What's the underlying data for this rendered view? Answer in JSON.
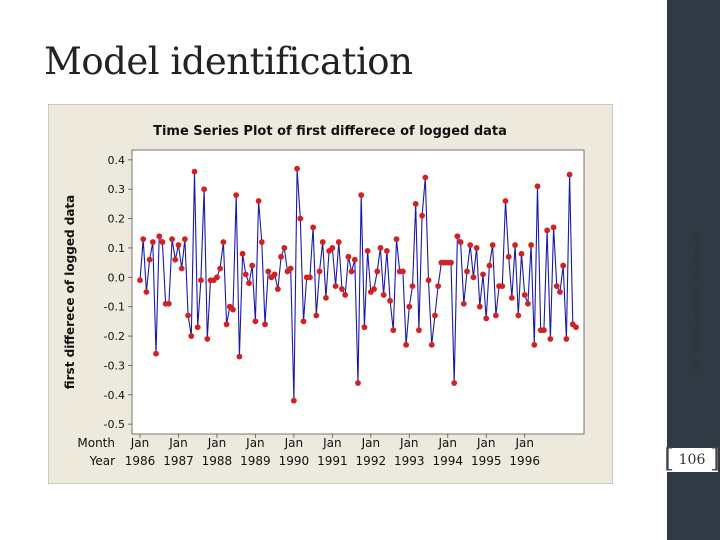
{
  "slide": {
    "title": "Model identification",
    "author": "Dr. Mohammed Alahmed",
    "page_number": "106"
  },
  "colors": {
    "panel_background": "#ede9dc",
    "plot_background": "#ffffff",
    "line": "#1a1aa8",
    "points": "#d42020",
    "side_band": "#2f3a44"
  },
  "chart_data": {
    "type": "line",
    "title": "Time Series Plot of first differece of logged data",
    "ylabel": "first differece of logged data",
    "x_row_labels": [
      "Month",
      "Year"
    ],
    "x_tick_month": [
      "Jan",
      "Jan",
      "Jan",
      "Jan",
      "Jan",
      "Jan",
      "Jan",
      "Jan",
      "Jan",
      "Jan",
      "Jan"
    ],
    "x_tick_year": [
      "1986",
      "1987",
      "1988",
      "1989",
      "1990",
      "1991",
      "1992",
      "1993",
      "1994",
      "1995",
      "1996"
    ],
    "y_ticks": [
      "0.4",
      "0.3",
      "0.2",
      "0.1",
      "0.0",
      "-0.1",
      "-0.2",
      "-0.3",
      "-0.4",
      "-0.5"
    ],
    "ylim": [
      -0.5,
      0.4
    ],
    "x_start": "Jan 1986",
    "frequency": "monthly",
    "grid": false,
    "series": [
      {
        "values": [
          -0.01,
          0.13,
          -0.05,
          0.06,
          0.12,
          -0.26,
          0.14,
          0.12,
          -0.09,
          -0.09,
          0.13,
          0.06,
          0.11,
          0.03,
          0.13,
          -0.13,
          -0.2,
          0.36,
          -0.17,
          -0.01,
          0.3,
          -0.21,
          -0.01,
          -0.01,
          0.0,
          0.03,
          0.12,
          -0.16,
          -0.1,
          -0.11,
          0.28,
          -0.27,
          0.08,
          0.01,
          -0.02,
          0.04,
          -0.15,
          0.26,
          0.12,
          -0.16,
          0.02,
          0.0,
          0.01,
          -0.04,
          0.07,
          0.1,
          0.02,
          0.03,
          -0.42,
          0.37,
          0.2,
          -0.15,
          0.0,
          0.0,
          0.17,
          -0.13,
          0.02,
          0.12,
          -0.07,
          0.09,
          0.1,
          -0.03,
          0.12,
          -0.04,
          -0.06,
          0.07,
          0.02,
          0.06,
          -0.36,
          0.28,
          -0.17,
          0.09,
          -0.05,
          -0.04,
          0.02,
          0.1,
          -0.06,
          0.09,
          -0.08,
          -0.18,
          0.13,
          0.02,
          0.02,
          -0.23,
          -0.1,
          -0.03,
          0.25,
          -0.18,
          0.21,
          0.34,
          -0.01,
          -0.23,
          -0.13,
          -0.03,
          0.05,
          0.05,
          0.05,
          0.05,
          -0.36,
          0.14,
          0.12,
          -0.09,
          0.02,
          0.11,
          0.0,
          0.1,
          -0.1,
          0.01,
          -0.14,
          0.04,
          0.11,
          -0.13,
          -0.03,
          -0.03,
          0.26,
          0.07,
          -0.07,
          0.11,
          -0.13,
          0.08,
          -0.06,
          -0.09,
          0.11,
          -0.23,
          0.31,
          -0.18,
          -0.18,
          0.16,
          -0.21,
          0.17,
          -0.03,
          -0.05,
          0.04,
          -0.21,
          0.35,
          -0.16,
          -0.17
        ]
      }
    ]
  }
}
